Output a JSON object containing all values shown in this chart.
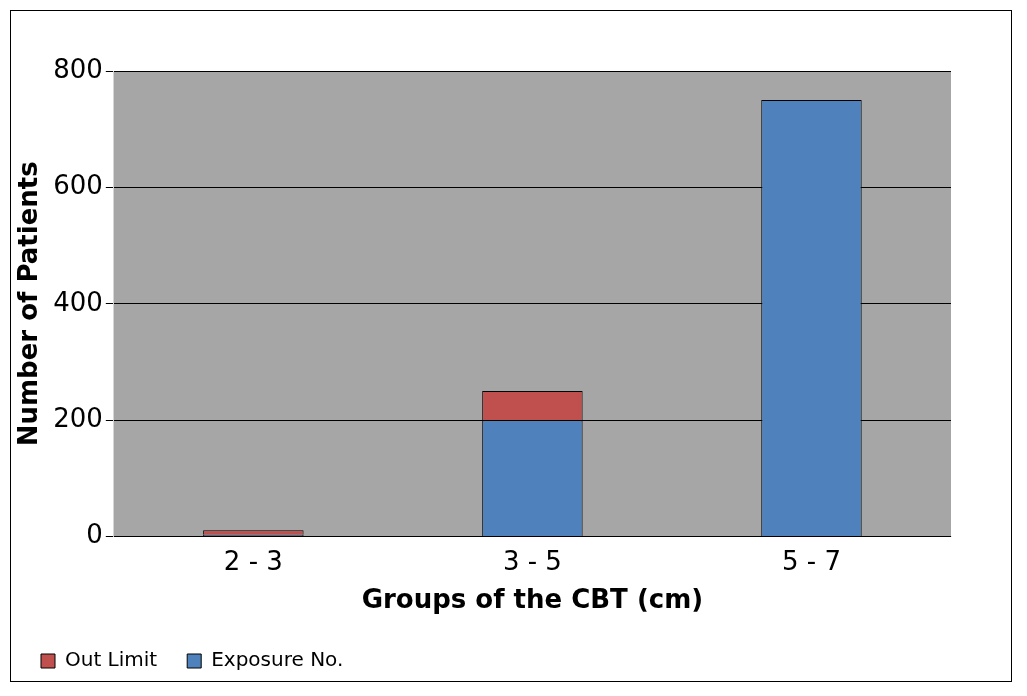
{
  "chart_data": {
    "type": "bar",
    "stacked": true,
    "categories": [
      "2 - 3",
      "3 - 5",
      "5 - 7"
    ],
    "series": [
      {
        "name": "Exposure No.",
        "color": "#4f81bd",
        "values": [
          3,
          200,
          750
        ]
      },
      {
        "name": "Out Limit",
        "color": "#c0504d",
        "values": [
          8,
          50,
          0
        ]
      }
    ],
    "xlabel": "Groups of the CBT (cm)",
    "ylabel": "Number of Patients",
    "ylim": [
      0,
      800
    ],
    "yticks": [
      0,
      200,
      400,
      600,
      800
    ],
    "grid": "y",
    "legend": "bottom left"
  }
}
